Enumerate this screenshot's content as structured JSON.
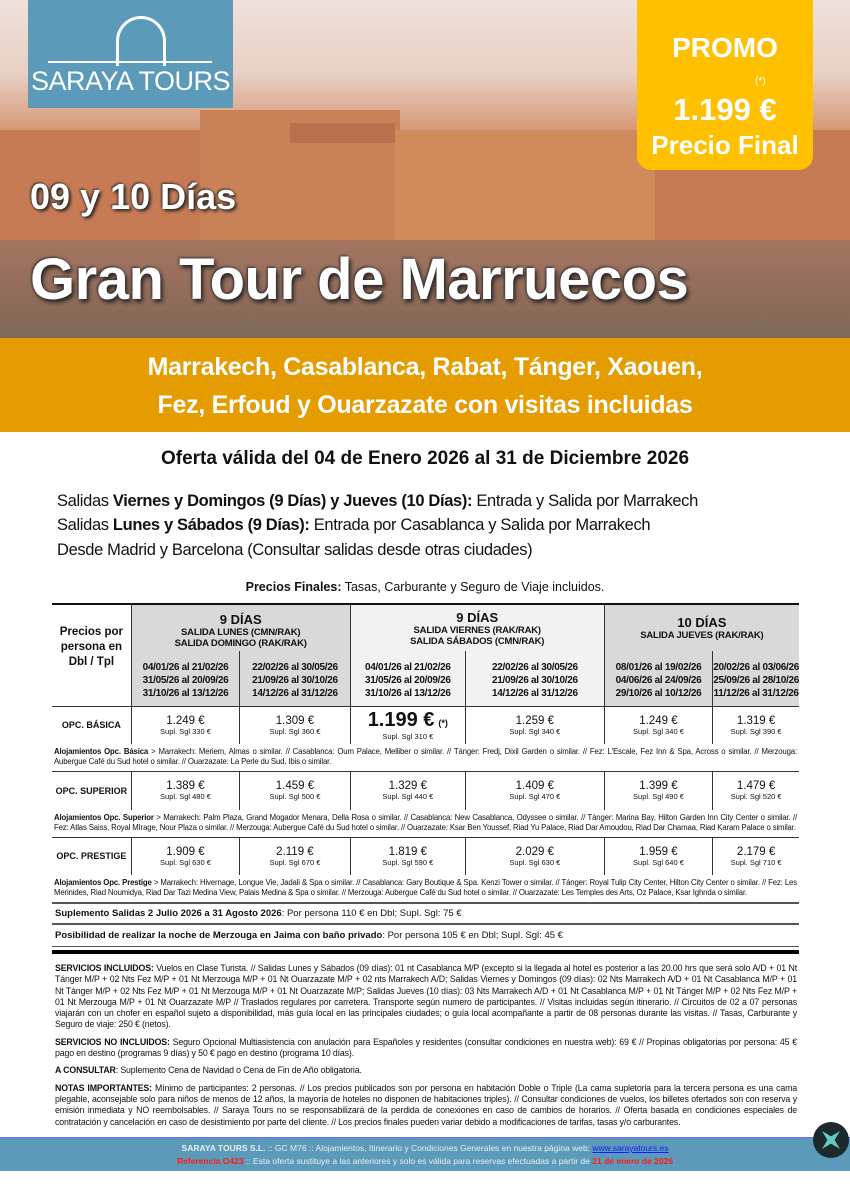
{
  "brand": {
    "logo_text": "SARAYA TOURS",
    "color": "#5b9ab8"
  },
  "promo": {
    "label": "PROMO",
    "asterisk": "(*)",
    "price": "1.199 €",
    "note": "Precio Final",
    "color": "#ffc000"
  },
  "hero": {
    "days": "09 y 10 Días",
    "title": "Gran Tour de Marruecos"
  },
  "band": {
    "line1": "Marrakech, Casablanca, Rabat, Tánger, Xaouen,",
    "line2": "Fez, Erfoud y Ouarzazate con visitas incluidas",
    "color": "#e49c00"
  },
  "offer": "Oferta válida del 04 de Enero 2026 al 31 de Diciembre 2026",
  "salidas": [
    {
      "pre": "Salidas ",
      "bold": "Viernes y Domingos (9 Días) y Jueves (10 Días):",
      "post": " Entrada y Salida por Marrakech"
    },
    {
      "pre": "Salidas ",
      "bold": "Lunes y Sábados (9 Días):",
      "post": " Entrada por Casablanca y Salida por Marrakech"
    },
    {
      "pre": "Desde Madrid y Barcelona (Consultar salidas desde otras ciudades)",
      "bold": "",
      "post": ""
    }
  ],
  "precios_finales": {
    "bold": "Precios Finales:",
    "text": " Tasas, Carburante y Seguro de Viaje incluidos."
  },
  "table": {
    "corner": "Precios por persona en Dbl / Tpl",
    "groups": [
      {
        "title": "9 DÍAS",
        "sub1": "SALIDA LUNES (CMN/RAK)",
        "sub2": "SALIDA DOMINGO (RAK/RAK)"
      },
      {
        "title": "9 DÍAS",
        "sub1": "SALIDA VIERNES (RAK/RAK)",
        "sub2": "SALIDA SÁBADOS (CMN/RAK)"
      },
      {
        "title": "10 DÍAS",
        "sub1": "SALIDA JUEVES (RAK/RAK)",
        "sub2": ""
      }
    ],
    "dates": [
      [
        "04/01/26 al 21/02/26",
        "31/05/26 al 20/09/26",
        "31/10/26 al 13/12/26"
      ],
      [
        "22/02/26 al 30/05/26",
        "21/09/26 al 30/10/26",
        "14/12/26 al 31/12/26"
      ],
      [
        "04/01/26 al 21/02/26",
        "31/05/26 al 20/09/26",
        "31/10/26 al 13/12/26"
      ],
      [
        "22/02/26 al 30/05/26",
        "21/09/26 al 30/10/26",
        "14/12/26 al 31/12/26"
      ],
      [
        "08/01/26 al 19/02/26",
        "04/06/26 al 24/09/26",
        "29/10/26 al 10/12/26"
      ],
      [
        "20/02/26 al 03/06/26",
        "25/09/26 al 28/10/26",
        "11/12/26 al 31/12/26"
      ]
    ],
    "rows": [
      {
        "label": "OPC. BÁSICA",
        "cells": [
          [
            "1.249 €",
            "Supl. Sgl 330 €"
          ],
          [
            "1.309 €",
            "Supl. Sgl 360 €"
          ],
          [
            "1.199 €",
            "Supl. Sgl 310 €"
          ],
          [
            "1.259 €",
            "Supl. Sgl 340 €"
          ],
          [
            "1.249 €",
            "Supl. Sgl 340 €"
          ],
          [
            "1.319 €",
            "Supl. Sgl 390 €"
          ]
        ],
        "hotels_label": "Alojamientos Opc. Básica",
        "hotels": " > Marrakech: Meriem, Almas o similar. // Casablanca: Oum Palace, Melliber o similar. // Tánger: Fredj, Dixil Garden o similar. // Fez: L'Escale, Fez Inn & Spa, Across o similar. // Merzouga: Aubergue Café du Sud hotel o similar. // Ouarzazate: La Perle du Sud, Ibis o similar."
      },
      {
        "label": "OPC. SUPERIOR",
        "cells": [
          [
            "1.389 €",
            "Supl. Sgl 480 €"
          ],
          [
            "1.459 €",
            "Supl. Sgl 500 €"
          ],
          [
            "1.329 €",
            "Supl. Sgl 440 €"
          ],
          [
            "1.409 €",
            "Supl. Sgl 470 €"
          ],
          [
            "1.399 €",
            "Supl. Sgl 490 €"
          ],
          [
            "1.479 €",
            "Supl. Sgl 520 €"
          ]
        ],
        "hotels_label": "Alojamientos Opc. Superior",
        "hotels": " > Marrakech: Palm Plaza, Grand Mogador Menara, Della Rosa o similar. // Casablanca: New Casablanca, Odyssee o similar. // Tánger: Marina Bay, Hilton Garden Inn City Center o similar. // Fez: Atlas Saiss, Royal MIrage, Nour Plaza o similar. // Merzouga: Aubergue Café du Sud hotel o similar. // Ouarzazate: Ksar Ben Youssef, Riad Yu Palace, Riad Dar Amoudou, Riad Dar Chamaa, Riad Karam Palace o similar."
      },
      {
        "label": "OPC. PRESTIGE",
        "cells": [
          [
            "1.909 €",
            "Supl. Sgl 630 €"
          ],
          [
            "2.119 €",
            "Supl. Sgl 670 €"
          ],
          [
            "1.819 €",
            "Supl. Sgl 590 €"
          ],
          [
            "2.029 €",
            "Supl. Sgl 630 €"
          ],
          [
            "1.959 €",
            "Supl. Sgl 640 €"
          ],
          [
            "2.179 €",
            "Supl. Sgl 710 €"
          ]
        ],
        "hotels_label": "Alojamientos Opc. Prestige",
        "hotels": " > Marrakech: Hivernage, Longue Vie, Jadali & Spa o similar. // Casablanca: Gary Boutique & Spa. Kenzi Tower o similar. // Tánger: Royal Tulip City Center, Hilton City Center o similar. // Fez: Les Merinides, Riad Noumidya, Riad Dar Tazi Medina View, Palais Medina & Spa o similar. // Merzouga: Aubergue Café du Sud hotel o similar.  // Ouarzazate: Les Temples des Arts, Oz Palace, Ksar Ighnda o similar."
      }
    ],
    "promo_mark": "(*)"
  },
  "suplemento": {
    "bold": "Suplemento Salidas 2 Julio 2026  a 31 Agosto 2026",
    "text": ": Por persona 110 € en Dbl;  Supl. Sgl: 75 €"
  },
  "jaima": {
    "bold": "Posibilidad de realizar la noche de Merzouga en Jaima con baño privado",
    "text": ": Por persona 105 € en Dbl; Supl. Sgl: 45 €"
  },
  "servicios": {
    "bold": "SERVICIOS INCLUIDOS:",
    "text": " Vuelos en Clase Turista. // Salidas Lunes y Sábados (09 días): 01 nt Casablanca M/P (excepto si la llegada al hotel es posterior a las 20.00 hrs que será solo A/D + 01 Nt Tánger M/P + 02 Nts Fez M/P + 01 Nt Merzouga M/P + 01 Nt Ouarzazate M/P + 02 nts Marrakech A/D; Salidas Viernes  y Domingos (09 días): 02 Nts Marrakech A/D + 01 Nt Casablanca M/P + 01 Nt Tánger M/P + 02 Nts Fez M/P + 01 Nt Merzouga M/P + 01 Nt Ouarzazate M/P; Salidas Jueves (10 días): 03 Nts Marrakech A/D + 01 Nt Casablanca M/P + 01 Nt Tánger M/P + 02 Nts Fez M/P + 01 Nt Merzouga M/P + 01 Nt Ouarzazate M/P // Traslados regulares por carretera. Transporte según numero de participantes. // Visitas incluidas según itinerario. // Circuitos de 02 a 07 personas viajarán con un chofer en español sujeto a disponibilidad, más guía local en las principales ciudades; o guía local acompañante a partir de 08 personas durante las visitas. // Tasas, Carburante y Seguro de viaje: 250 € (netos)."
  },
  "no_incluidos": {
    "bold": "SERVICIOS NO INCLUIDOS:",
    "text": " Seguro Opcional Multiasistencia con anulación para Españoles y residentes (consultar condiciones en nuestra web): 69 € // Propinas obligatorias por persona: 45 € pago en destino (programas 9 días) y 50 € pago en destino (programa 10 días)."
  },
  "consultar": {
    "bold": "A CONSULTAR",
    "text": ": Suplemento Cena de Navidad o Cena de Fin de Año obligatoria."
  },
  "notas": {
    "bold": "NOTAS IMPORTANTES:",
    "text": " Mínimo de participantes: 2 personas. // Los precios publicados son por persona en habitación Doble o Triple (La cama supletoria para la tercera persona es una cama plegable, aconsejable solo para niños de menos de 12 años, la mayoría de hoteles no disponen de habitaciones triples). // Consultar condiciones de vuelos, los billetes ofertados son con reserva y emisión inmediata y NO reembolsables. // Saraya Tours no se responsabilizará de la perdida de conexiones en caso de cambios de horarios. // Oferta basada en condiciones especiales de contratación y cancelación en caso de desistimiento por parte del cliente. // Los precios finales pueden variar debido a modificaciones de tarifas, tasas y/o carburantes."
  },
  "footer": {
    "company": "SARAYA TOURS S.L.",
    "line1": " :: GC M76 ::  Alojamientos, Itinerario y Condiciones Generales en nuestra página web:  ",
    "url": "www.sarayatours.es",
    "ref": "Referencia O423",
    "line2": " :: Esta oferta sustituye a las anteriores y solo es válida para reservas efectuadas a partir de ",
    "date": "21 de enero de 2026"
  }
}
